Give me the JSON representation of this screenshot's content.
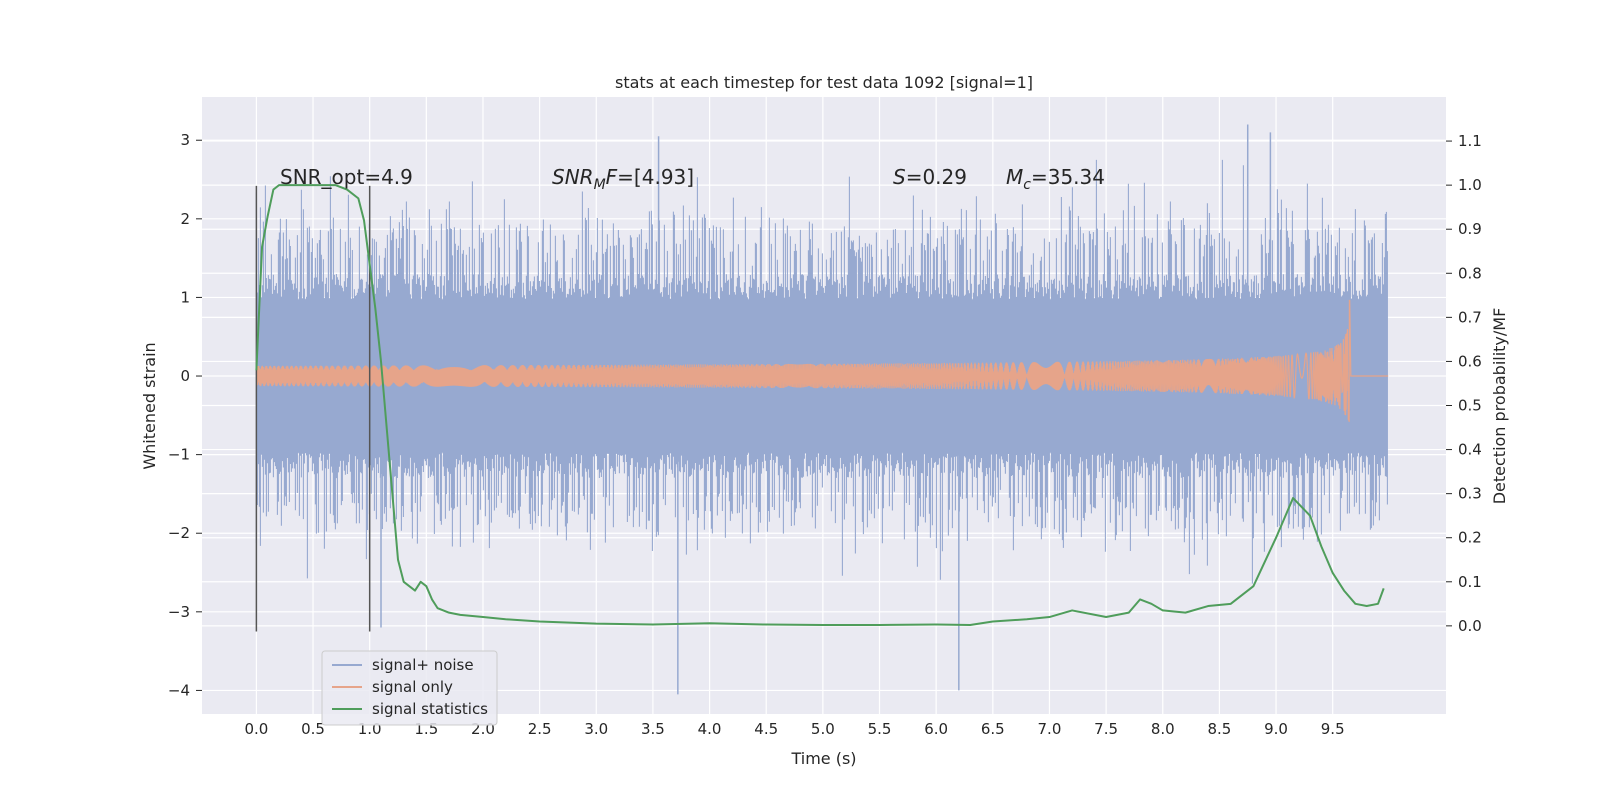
{
  "chart_data": {
    "type": "line",
    "title": "stats at each timestep for test data 1092 [signal=1]",
    "xlabel": "Time (s)",
    "ylabel_left": "Whitened strain",
    "ylabel_right": "Detection probability/MF",
    "xlim": [
      -0.48,
      10.5
    ],
    "ylim_left": [
      -4.3,
      3.55
    ],
    "ylim_right": [
      -0.2,
      1.2
    ],
    "xticks": [
      0.0,
      0.5,
      1.0,
      1.5,
      2.0,
      2.5,
      3.0,
      3.5,
      4.0,
      4.5,
      5.0,
      5.5,
      6.0,
      6.5,
      7.0,
      7.5,
      8.0,
      8.5,
      9.0,
      9.5
    ],
    "xtick_labels": [
      "0.0",
      "0.5",
      "1.0",
      "1.5",
      "2.0",
      "2.5",
      "3.0",
      "3.5",
      "4.0",
      "4.5",
      "5.0",
      "5.5",
      "6.0",
      "6.5",
      "7.0",
      "7.5",
      "8.0",
      "8.5",
      "9.0",
      "9.5"
    ],
    "yticks_left": [
      3,
      2,
      1,
      0,
      -1,
      -2,
      -3,
      -4
    ],
    "ytick_labels_left": [
      "3",
      "2",
      "1",
      "0",
      "−1",
      "−2",
      "−3",
      "−4"
    ],
    "yticks_right": [
      1.1,
      1.0,
      0.9,
      0.8,
      0.7,
      0.6,
      0.5,
      0.4,
      0.3,
      0.2,
      0.1,
      0.0
    ],
    "ytick_labels_right": [
      "1.1",
      "1.0",
      "0.9",
      "0.8",
      "0.7",
      "0.6",
      "0.5",
      "0.4",
      "0.3",
      "0.2",
      "0.1",
      "0.0"
    ],
    "grid": true,
    "legend_position": "lower-left",
    "annotations": {
      "snr_opt": "SNR_opt=4.9",
      "snr_mf_italic": "SNR",
      "snr_mf_sub": "M",
      "snr_mf_italic2": "F",
      "snr_mf_value": "=[4.93]",
      "s_italic": "S",
      "s_value": "=0.29",
      "mc_italic": "M",
      "mc_sub": "c",
      "mc_value": "=35.34"
    },
    "vertical_markers": [
      0.0,
      1.0
    ],
    "vertical_marker_range_left_axis": [
      -3.25,
      2.42
    ],
    "series": [
      {
        "name": "signal+ noise",
        "color": "#97a9d0",
        "style": "dense-noise",
        "x_range": [
          0.0,
          9.99
        ],
        "core_amplitude": 1.3,
        "notable_peaks": [
          {
            "x": 3.55,
            "y": 3.05
          },
          {
            "x": 8.75,
            "y": 3.2
          },
          {
            "x": 8.95,
            "y": 3.1
          },
          {
            "x": 3.72,
            "y": -4.05
          },
          {
            "x": 6.2,
            "y": -4.0
          },
          {
            "x": 1.1,
            "y": -3.2
          }
        ]
      },
      {
        "name": "signal only",
        "color": "#e6a48a",
        "style": "chirp",
        "x_range": [
          0.0,
          9.65
        ],
        "peak_time": 9.65,
        "peak_amplitude": 0.98
      },
      {
        "name": "signal statistics",
        "color": "#4f9d5b",
        "axis": "right",
        "x": [
          0.0,
          0.05,
          0.1,
          0.15,
          0.2,
          0.3,
          0.4,
          0.5,
          0.6,
          0.7,
          0.8,
          0.9,
          0.95,
          1.0,
          1.05,
          1.1,
          1.15,
          1.2,
          1.25,
          1.3,
          1.35,
          1.4,
          1.45,
          1.5,
          1.55,
          1.6,
          1.7,
          1.8,
          2.0,
          2.2,
          2.5,
          3.0,
          3.5,
          4.0,
          4.5,
          5.0,
          5.5,
          6.0,
          6.3,
          6.5,
          6.8,
          7.0,
          7.2,
          7.5,
          7.7,
          7.8,
          7.9,
          8.0,
          8.2,
          8.4,
          8.6,
          8.8,
          9.0,
          9.15,
          9.3,
          9.4,
          9.5,
          9.6,
          9.7,
          9.8,
          9.9,
          9.95
        ],
        "y": [
          0.58,
          0.86,
          0.93,
          0.99,
          1.0,
          1.0,
          1.0,
          1.0,
          1.0,
          1.0,
          0.99,
          0.97,
          0.92,
          0.82,
          0.72,
          0.6,
          0.45,
          0.3,
          0.15,
          0.1,
          0.09,
          0.08,
          0.1,
          0.09,
          0.06,
          0.04,
          0.03,
          0.025,
          0.02,
          0.015,
          0.01,
          0.005,
          0.003,
          0.006,
          0.003,
          0.002,
          0.002,
          0.003,
          0.002,
          0.01,
          0.015,
          0.02,
          0.035,
          0.02,
          0.03,
          0.06,
          0.05,
          0.035,
          0.03,
          0.045,
          0.05,
          0.09,
          0.2,
          0.29,
          0.25,
          0.18,
          0.12,
          0.08,
          0.05,
          0.045,
          0.05,
          0.085
        ]
      }
    ]
  }
}
